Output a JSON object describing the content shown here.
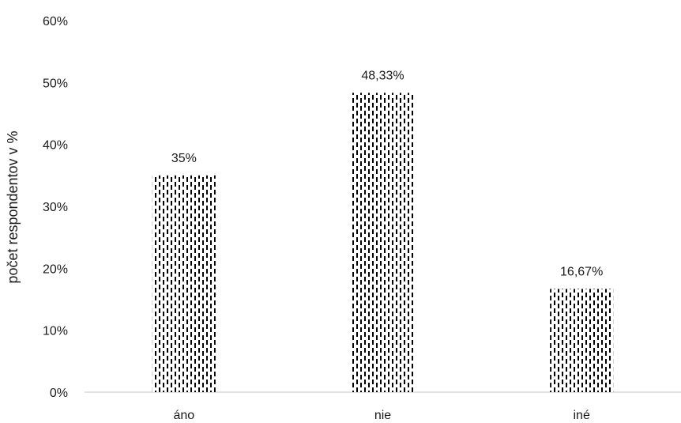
{
  "chart_data": {
    "type": "bar",
    "categories": [
      "áno",
      "nie",
      "iné"
    ],
    "values": [
      35,
      48.33,
      16.67
    ],
    "data_labels": [
      "35%",
      "48,33%",
      "16,67%"
    ],
    "ylabel": "počet respondentov v %",
    "xlabel": "",
    "ylim": [
      0,
      60
    ],
    "yticks": [
      "0%",
      "10%",
      "20%",
      "30%",
      "40%",
      "50%",
      "60%"
    ],
    "yticks_values": [
      0,
      10,
      20,
      30,
      40,
      50,
      60
    ],
    "grid": false,
    "legend": "none",
    "bar_pattern": "vertical-dashed",
    "bar_color": "#000000",
    "axis_color": "#d9d9d9"
  }
}
